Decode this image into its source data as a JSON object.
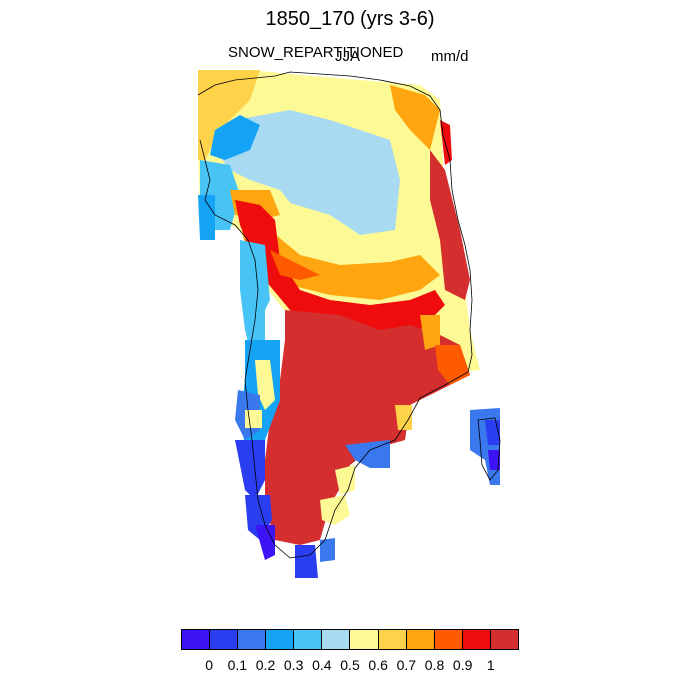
{
  "figure": {
    "title": "1850_170 (yrs 3-6)",
    "variable": "SNOW_REPARTITIONED",
    "season": "JJA",
    "units": "mm/d"
  },
  "colorbar": {
    "colors": [
      "#3c14f5",
      "#2a3df0",
      "#3a78ee",
      "#15a4f5",
      "#47c4f5",
      "#a8daf1",
      "#fdfa96",
      "#fed34a",
      "#fea50f",
      "#fe5a00",
      "#ee0c0c",
      "#d52e2e"
    ],
    "labels": [
      "0",
      "0.1",
      "0.2",
      "0.3",
      "0.4",
      "0.5",
      "0.6",
      "0.7",
      "0.8",
      "0.9",
      "1"
    ]
  },
  "map": {
    "region": "Greenland",
    "coastline_color": "#000000"
  }
}
